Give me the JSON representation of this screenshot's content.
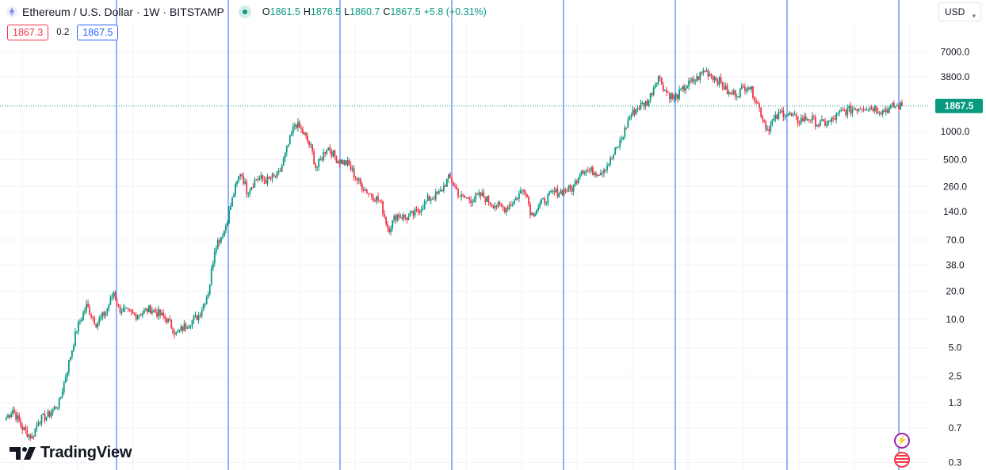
{
  "header": {
    "title": "Ethereum / U.S. Dollar · 1W · BITSTAMP",
    "ohlc": [
      {
        "key": "O",
        "value": "1861.5"
      },
      {
        "key": "H",
        "value": "1876.5"
      },
      {
        "key": "L",
        "value": "1860.7"
      },
      {
        "key": "C",
        "value": "1867.5"
      }
    ],
    "change": "+5.8 (+0.31%)"
  },
  "order": {
    "sell": "1867.3",
    "spread": "0.2",
    "buy": "1867.5"
  },
  "currency": {
    "label": "USD"
  },
  "logo": {
    "text": "TradingView"
  },
  "colors": {
    "up": "#089981",
    "down": "#f23645",
    "marker": "#2962ff",
    "grid": "#f0f3fa"
  },
  "chart_data": {
    "type": "candlestick",
    "scale": "log",
    "symbol": "ETHUSD",
    "interval": "1W",
    "price_axis_ticks": [
      "7000.0",
      "3800.0",
      "1000.0",
      "500.0",
      "260.0",
      "140.0",
      "70.0",
      "38.0",
      "20.0",
      "10.0",
      "5.0",
      "2.5",
      "1.3",
      "0.7",
      "0.3"
    ],
    "ylim": [
      0.25,
      14000
    ],
    "last_price": "1867.5",
    "vertical_markers": 8,
    "series": [
      {
        "t": 0.0,
        "v": 0.9
      },
      {
        "t": 0.4,
        "v": 1.1
      },
      {
        "t": 1.0,
        "v": 0.7
      },
      {
        "t": 1.6,
        "v": 0.55
      },
      {
        "t": 2.0,
        "v": 0.85
      },
      {
        "t": 2.6,
        "v": 0.95
      },
      {
        "t": 3.3,
        "v": 1.3
      },
      {
        "t": 3.8,
        "v": 3
      },
      {
        "t": 4.4,
        "v": 8
      },
      {
        "t": 5.0,
        "v": 14
      },
      {
        "t": 5.6,
        "v": 9
      },
      {
        "t": 6.2,
        "v": 12
      },
      {
        "t": 6.7,
        "v": 20
      },
      {
        "t": 7.0,
        "v": 13
      },
      {
        "t": 8.0,
        "v": 11
      },
      {
        "t": 9.0,
        "v": 13
      },
      {
        "t": 10.0,
        "v": 10
      },
      {
        "t": 10.6,
        "v": 7
      },
      {
        "t": 11.3,
        "v": 9
      },
      {
        "t": 12.0,
        "v": 11
      },
      {
        "t": 12.6,
        "v": 20
      },
      {
        "t": 13.0,
        "v": 60
      },
      {
        "t": 13.6,
        "v": 90
      },
      {
        "t": 14.2,
        "v": 230
      },
      {
        "t": 14.6,
        "v": 380
      },
      {
        "t": 15.0,
        "v": 230
      },
      {
        "t": 15.6,
        "v": 320
      },
      {
        "t": 16.3,
        "v": 300
      },
      {
        "t": 17.0,
        "v": 350
      },
      {
        "t": 17.6,
        "v": 750
      },
      {
        "t": 18.0,
        "v": 1250
      },
      {
        "t": 18.6,
        "v": 900
      },
      {
        "t": 19.0,
        "v": 650
      },
      {
        "t": 19.3,
        "v": 400
      },
      {
        "t": 20.0,
        "v": 700
      },
      {
        "t": 20.6,
        "v": 500
      },
      {
        "t": 21.3,
        "v": 450
      },
      {
        "t": 22.0,
        "v": 280
      },
      {
        "t": 22.6,
        "v": 220
      },
      {
        "t": 23.3,
        "v": 180
      },
      {
        "t": 23.8,
        "v": 90
      },
      {
        "t": 24.3,
        "v": 130
      },
      {
        "t": 25.0,
        "v": 120
      },
      {
        "t": 25.6,
        "v": 140
      },
      {
        "t": 26.3,
        "v": 190
      },
      {
        "t": 27.0,
        "v": 220
      },
      {
        "t": 27.6,
        "v": 330
      },
      {
        "t": 28.3,
        "v": 200
      },
      {
        "t": 29.0,
        "v": 190
      },
      {
        "t": 29.6,
        "v": 210
      },
      {
        "t": 30.3,
        "v": 170
      },
      {
        "t": 31.0,
        "v": 150
      },
      {
        "t": 31.6,
        "v": 180
      },
      {
        "t": 32.3,
        "v": 260
      },
      {
        "t": 32.7,
        "v": 130
      },
      {
        "t": 33.3,
        "v": 170
      },
      {
        "t": 34.0,
        "v": 220
      },
      {
        "t": 34.6,
        "v": 230
      },
      {
        "t": 35.3,
        "v": 250
      },
      {
        "t": 35.8,
        "v": 400
      },
      {
        "t": 36.3,
        "v": 380
      },
      {
        "t": 37.0,
        "v": 370
      },
      {
        "t": 37.6,
        "v": 480
      },
      {
        "t": 38.3,
        "v": 800
      },
      {
        "t": 38.8,
        "v": 1400
      },
      {
        "t": 39.3,
        "v": 1800
      },
      {
        "t": 40.0,
        "v": 2100
      },
      {
        "t": 40.6,
        "v": 4000
      },
      {
        "t": 41.0,
        "v": 2800
      },
      {
        "t": 41.6,
        "v": 2200
      },
      {
        "t": 42.3,
        "v": 3000
      },
      {
        "t": 43.0,
        "v": 3600
      },
      {
        "t": 43.5,
        "v": 4500
      },
      {
        "t": 44.0,
        "v": 3900
      },
      {
        "t": 44.6,
        "v": 3200
      },
      {
        "t": 45.0,
        "v": 2500
      },
      {
        "t": 45.6,
        "v": 2600
      },
      {
        "t": 46.2,
        "v": 3200
      },
      {
        "t": 46.7,
        "v": 2200
      },
      {
        "t": 47.0,
        "v": 1600
      },
      {
        "t": 47.4,
        "v": 1050
      },
      {
        "t": 47.8,
        "v": 1300
      },
      {
        "t": 48.3,
        "v": 1600
      },
      {
        "t": 48.8,
        "v": 1500
      },
      {
        "t": 49.3,
        "v": 1300
      },
      {
        "t": 50.0,
        "v": 1400
      },
      {
        "t": 50.6,
        "v": 1200
      },
      {
        "t": 51.3,
        "v": 1250
      },
      {
        "t": 52.0,
        "v": 1600
      },
      {
        "t": 52.6,
        "v": 1700
      },
      {
        "t": 53.3,
        "v": 1850
      },
      {
        "t": 54.0,
        "v": 1800
      },
      {
        "t": 54.6,
        "v": 1650
      },
      {
        "t": 55.3,
        "v": 1850
      },
      {
        "t": 55.8,
        "v": 1867.5
      }
    ]
  }
}
